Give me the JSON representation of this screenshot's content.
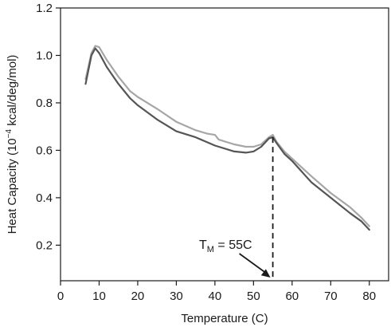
{
  "chart_data": {
    "type": "line",
    "xlabel": "Temperature (C)",
    "ylabel": {
      "prefix": "Heat Capacity (10",
      "exponent": "−4",
      "suffix": " kcal/deg/mol)"
    },
    "xlim": [
      0,
      85
    ],
    "ylim": [
      0.05,
      1.2
    ],
    "x_ticks": [
      0,
      10,
      20,
      30,
      40,
      50,
      60,
      70,
      80
    ],
    "y_ticks": [
      0.2,
      0.4,
      0.6,
      0.8,
      1.0,
      1.2
    ],
    "x_tick_labels": [
      "0",
      "10",
      "20",
      "30",
      "40",
      "50",
      "60",
      "70",
      "80"
    ],
    "y_tick_labels": [
      "0.2",
      "0.4",
      "0.6",
      "0.8",
      "1.0",
      "1.2"
    ],
    "grid": false,
    "legend": "none",
    "series": [
      {
        "color": "#555555",
        "points": [
          [
            6.5,
            0.88
          ],
          [
            8,
            1.0
          ],
          [
            9,
            1.03
          ],
          [
            10,
            1.01
          ],
          [
            12,
            0.95
          ],
          [
            15,
            0.88
          ],
          [
            18,
            0.82
          ],
          [
            20,
            0.79
          ],
          [
            25,
            0.73
          ],
          [
            30,
            0.68
          ],
          [
            35,
            0.655
          ],
          [
            40,
            0.62
          ],
          [
            45,
            0.595
          ],
          [
            48,
            0.59
          ],
          [
            50,
            0.595
          ],
          [
            52,
            0.615
          ],
          [
            54,
            0.65
          ],
          [
            55,
            0.655
          ],
          [
            56,
            0.63
          ],
          [
            58,
            0.585
          ],
          [
            60,
            0.555
          ],
          [
            65,
            0.465
          ],
          [
            70,
            0.4
          ],
          [
            75,
            0.335
          ],
          [
            78,
            0.3
          ],
          [
            80,
            0.265
          ]
        ]
      },
      {
        "color": "#a6a6a6",
        "points": [
          [
            6.5,
            0.9
          ],
          [
            8,
            1.01
          ],
          [
            9,
            1.04
          ],
          [
            10,
            1.035
          ],
          [
            12,
            0.98
          ],
          [
            15,
            0.91
          ],
          [
            18,
            0.85
          ],
          [
            20,
            0.825
          ],
          [
            25,
            0.775
          ],
          [
            30,
            0.72
          ],
          [
            35,
            0.685
          ],
          [
            38,
            0.67
          ],
          [
            40,
            0.665
          ],
          [
            41,
            0.645
          ],
          [
            45,
            0.625
          ],
          [
            48,
            0.615
          ],
          [
            50,
            0.615
          ],
          [
            52,
            0.625
          ],
          [
            54,
            0.655
          ],
          [
            55,
            0.665
          ],
          [
            56,
            0.635
          ],
          [
            58,
            0.595
          ],
          [
            60,
            0.565
          ],
          [
            65,
            0.49
          ],
          [
            70,
            0.42
          ],
          [
            75,
            0.36
          ],
          [
            78,
            0.315
          ],
          [
            80,
            0.28
          ]
        ]
      }
    ],
    "annotation": {
      "label_main": "T",
      "label_sub": "M",
      "label_rest": " = 55C",
      "marker_x": 55
    }
  },
  "colors": {
    "axis": "#1a1a1a",
    "dashed_marker": "#1a1a1a"
  }
}
